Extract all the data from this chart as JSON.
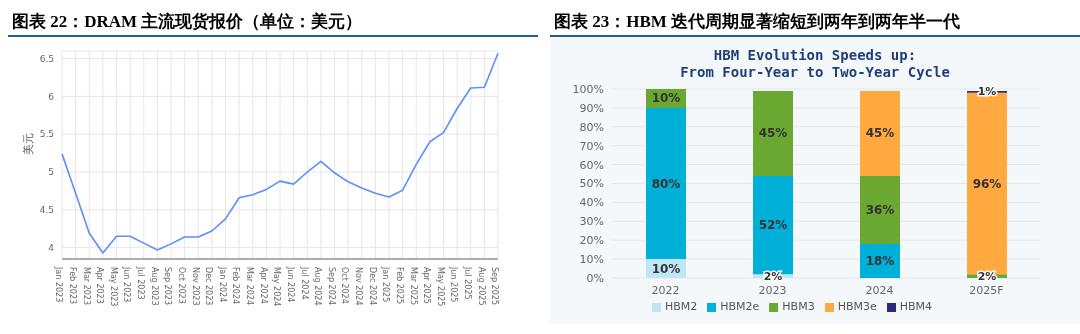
{
  "chart_data": [
    {
      "type": "line",
      "title": "图表 22：DRAM 主流现货报价（单位：美元）",
      "ylabel": "美元",
      "categories": [
        "Jan 2023",
        "Feb 2023",
        "Mar 2023",
        "Apr 2023",
        "May 2023",
        "Jun 2023",
        "Jul 2023",
        "Aug 2023",
        "Sep 2023",
        "Oct 2023",
        "Nov 2023",
        "Dec 2023",
        "Jan 2024",
        "Feb 2024",
        "Mar 2024",
        "Apr 2024",
        "May 2024",
        "Jun 2024",
        "Jul 2024",
        "Aug 2024",
        "Sep 2024",
        "Oct 2024",
        "Nov 2024",
        "Dec 2024",
        "Jan 2025",
        "Feb 2025",
        "Mar 2025",
        "Apr 2025",
        "May 2025",
        "Jun 2025",
        "Jul 2025",
        "Aug 2025",
        "Sep 2025"
      ],
      "series": [
        {
          "color": "#5b8ff9",
          "values": [
            5.24,
            4.72,
            4.19,
            3.93,
            4.15,
            4.15,
            4.06,
            3.97,
            4.05,
            4.14,
            4.14,
            4.22,
            4.38,
            4.66,
            4.7,
            4.77,
            4.88,
            4.84,
            5.0,
            5.14,
            4.99,
            4.87,
            4.79,
            4.72,
            4.67,
            4.76,
            5.1,
            5.4,
            5.52,
            5.84,
            6.11,
            6.12,
            6.57
          ]
        }
      ],
      "ylim": [
        3.85,
        6.6
      ],
      "yticks": [
        4,
        4.5,
        5,
        5.5,
        6,
        6.5
      ],
      "grid": true,
      "legend": false,
      "marker": "none",
      "line_style": "solid"
    },
    {
      "type": "bar",
      "stacked": true,
      "title": "图表 23：HBM 迭代周期显著缩短到两年到两年半一代",
      "subtitle": "HBM Evolution Speeds up:\nFrom Four-Year to Two-Year Cycle",
      "categories": [
        "2022",
        "2023",
        "2024",
        "2025F"
      ],
      "series": [
        {
          "name": "HBM2",
          "color": "#bfe6f7",
          "values": [
            10,
            2,
            0,
            0
          ],
          "value_labels": [
            "10%",
            "2%",
            null,
            null
          ]
        },
        {
          "name": "HBM2e",
          "color": "#00b0d8",
          "values": [
            80,
            52,
            18,
            0
          ],
          "value_labels": [
            "80%",
            "52%",
            "18%",
            null
          ]
        },
        {
          "name": "HBM3",
          "color": "#6aa832",
          "values": [
            10,
            45,
            36,
            2
          ],
          "value_labels": [
            "10%",
            "45%",
            "36%",
            "2%"
          ]
        },
        {
          "name": "HBM3e",
          "color": "#ffa940",
          "values": [
            0,
            0,
            45,
            96
          ],
          "value_labels": [
            null,
            null,
            "45%",
            "96%"
          ]
        },
        {
          "name": "HBM4",
          "color": "#2a2a7a",
          "values": [
            0,
            0,
            0,
            1
          ],
          "value_labels": [
            null,
            null,
            null,
            "1%"
          ]
        }
      ],
      "ylim": [
        0,
        100
      ],
      "yticks": [
        {
          "value": 0,
          "label": "0%"
        },
        {
          "value": 10,
          "label": "10%"
        },
        {
          "value": 20,
          "label": "20%"
        },
        {
          "value": 30,
          "label": "30%"
        },
        {
          "value": 40,
          "label": "40%"
        },
        {
          "value": 50,
          "label": "50%"
        },
        {
          "value": 60,
          "label": "60%"
        },
        {
          "value": 70,
          "label": "70%"
        },
        {
          "value": 80,
          "label": "80%"
        },
        {
          "value": 90,
          "label": "90%"
        },
        {
          "value": 100,
          "label": "100%"
        }
      ],
      "grid": "y",
      "legend": "bottom"
    }
  ]
}
